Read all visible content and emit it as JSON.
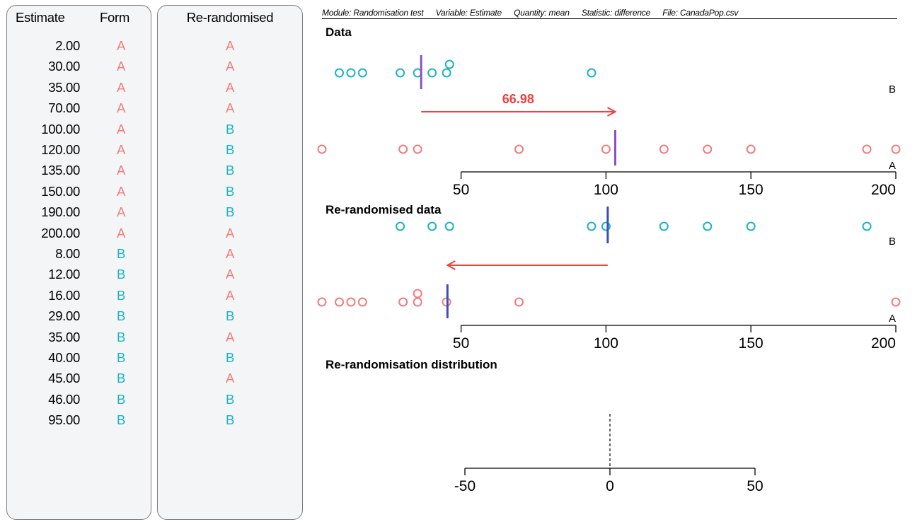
{
  "table": {
    "header_estimate": "Estimate",
    "header_form": "Form",
    "header_rerandomised": "Re-randomised",
    "rows": [
      {
        "estimate": "2.00",
        "form": "A",
        "re": "A"
      },
      {
        "estimate": "30.00",
        "form": "A",
        "re": "A"
      },
      {
        "estimate": "35.00",
        "form": "A",
        "re": "A"
      },
      {
        "estimate": "70.00",
        "form": "A",
        "re": "A"
      },
      {
        "estimate": "100.00",
        "form": "A",
        "re": "B"
      },
      {
        "estimate": "120.00",
        "form": "A",
        "re": "B"
      },
      {
        "estimate": "135.00",
        "form": "A",
        "re": "B"
      },
      {
        "estimate": "150.00",
        "form": "A",
        "re": "B"
      },
      {
        "estimate": "190.00",
        "form": "A",
        "re": "B"
      },
      {
        "estimate": "200.00",
        "form": "A",
        "re": "A"
      },
      {
        "estimate": "8.00",
        "form": "B",
        "re": "A"
      },
      {
        "estimate": "12.00",
        "form": "B",
        "re": "A"
      },
      {
        "estimate": "16.00",
        "form": "B",
        "re": "A"
      },
      {
        "estimate": "29.00",
        "form": "B",
        "re": "B"
      },
      {
        "estimate": "35.00",
        "form": "B",
        "re": "A"
      },
      {
        "estimate": "40.00",
        "form": "B",
        "re": "B"
      },
      {
        "estimate": "45.00",
        "form": "B",
        "re": "A"
      },
      {
        "estimate": "46.00",
        "form": "B",
        "re": "B"
      },
      {
        "estimate": "95.00",
        "form": "B",
        "re": "B"
      }
    ]
  },
  "header": {
    "module": "Module: Randomisation test",
    "variable": "Variable: Estimate",
    "quantity": "Quantity: mean",
    "statistic": "Statistic: difference",
    "file": "File: CanadaPop.csv"
  },
  "sections": {
    "data": "Data",
    "rerandomised": "Re-randomised data",
    "distribution": "Re-randomisation distribution"
  },
  "colors": {
    "group_a": "#f07d7d",
    "group_b": "#1db3c4",
    "mean_data": "#8e4fc0",
    "mean_rerandomised": "#3a4fb0",
    "arrow": "#f04040",
    "panel_bg": "#f4f5f6"
  },
  "chart_data": [
    {
      "type": "scatter",
      "name": "Data",
      "xlim": [
        0,
        200
      ],
      "ticks": [
        "50",
        "100",
        "150",
        "200"
      ],
      "series": [
        {
          "name": "A",
          "values": [
            2,
            30,
            35,
            70,
            100,
            120,
            135,
            150,
            190,
            200
          ],
          "mean": 103.2
        },
        {
          "name": "B",
          "values": [
            8,
            12,
            16,
            29,
            35,
            40,
            45,
            46,
            95
          ],
          "mean": 36.22
        }
      ],
      "difference": 66.98,
      "difference_label": "66.98"
    },
    {
      "type": "scatter",
      "name": "Re-randomised data",
      "xlim": [
        0,
        200
      ],
      "ticks": [
        "50",
        "100",
        "150",
        "200"
      ],
      "series": [
        {
          "name": "A",
          "values": [
            2,
            30,
            35,
            70,
            200,
            8,
            12,
            16,
            35,
            45
          ],
          "mean": 45.3
        },
        {
          "name": "B",
          "values": [
            100,
            120,
            135,
            150,
            190,
            29,
            40,
            46,
            95
          ],
          "mean": 100.6
        }
      ]
    },
    {
      "type": "scatter",
      "name": "Re-randomisation distribution",
      "xlim": [
        -100,
        100
      ],
      "ticks": [
        "-50",
        "0",
        "50"
      ],
      "values": [],
      "reference_line": 0
    }
  ]
}
